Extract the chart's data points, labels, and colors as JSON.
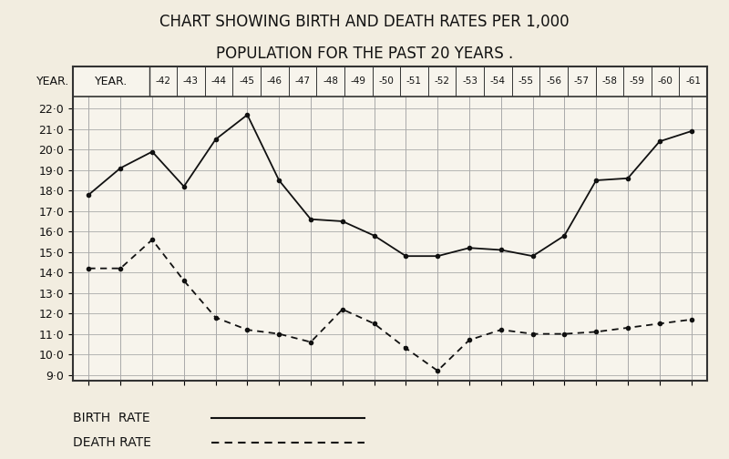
{
  "title_line1": "CHART SHOWING BIRTH AND DEATH RATES PER 1,000",
  "title_line2": "POPULATION FOR THE PAST 20 YEARS .",
  "years": [
    "-42",
    "-43",
    "-44",
    "-45",
    "-46",
    "-47",
    "-48",
    "-49",
    "-50",
    "-51",
    "-52",
    "-53",
    "-54",
    "-55",
    "-56",
    "-57",
    "-58",
    "-59",
    "-60",
    "-61"
  ],
  "birth_rate": [
    17.8,
    19.1,
    19.9,
    18.2,
    20.5,
    21.7,
    18.5,
    16.6,
    16.5,
    15.8,
    14.8,
    14.8,
    15.2,
    15.1,
    14.8,
    15.8,
    18.5,
    18.6,
    20.4,
    20.9
  ],
  "death_rate": [
    14.2,
    14.2,
    15.6,
    13.6,
    11.8,
    11.2,
    11.0,
    10.6,
    12.2,
    11.5,
    10.3,
    9.2,
    10.7,
    11.2,
    11.0,
    11.0,
    11.1,
    11.3,
    11.5,
    11.7
  ],
  "line_color": "#111111",
  "bg_color": "#f2ede0",
  "chart_bg": "#f7f4ec",
  "grid_color": "#aaaaaa",
  "border_color": "#333333",
  "ylim_min": 9.0,
  "ylim_max": 22.0,
  "legend_birth": "BIRTH  RATE",
  "legend_death": "DEATH RATE",
  "title_fontsize": 12,
  "tick_fontsize": 9,
  "header_fontsize": 9,
  "legend_fontsize": 10
}
